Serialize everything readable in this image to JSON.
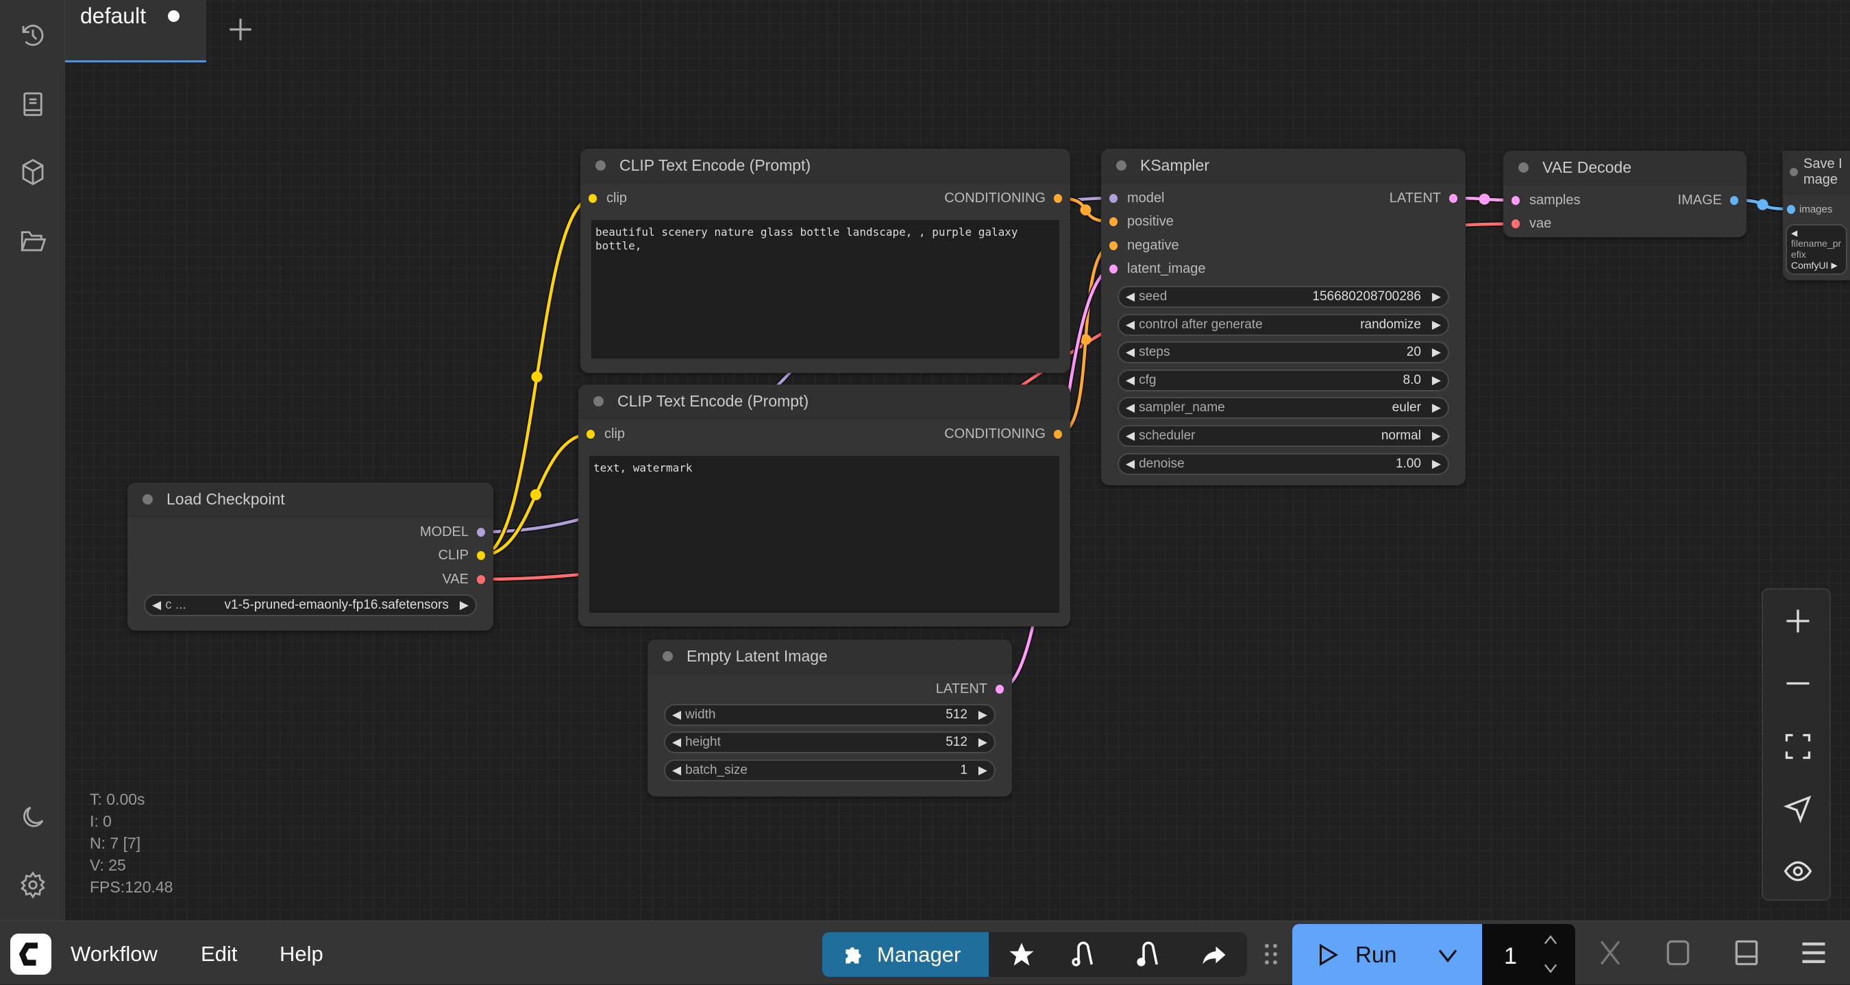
{
  "tabs": [
    {
      "label": "default",
      "unsaved": true
    }
  ],
  "sidebar": {
    "top_icons": [
      "history-icon",
      "queue-list-icon",
      "model-library-icon",
      "workflows-folder-icon"
    ],
    "bottom_icons": [
      "theme-moon-icon",
      "settings-gear-icon"
    ]
  },
  "slot_colors": {
    "MODEL": "#B39DDB",
    "CLIP": "#FFD500",
    "VAE": "#FF6E6E",
    "CONDITIONING": "#FFA931",
    "LATENT": "#FF9CF9",
    "IMAGE": "#64B5F6"
  },
  "nodes": [
    {
      "title": "Load Checkpoint",
      "inputs": [],
      "outputs": [
        {
          "name": "MODEL",
          "type": "MODEL"
        },
        {
          "name": "CLIP",
          "type": "CLIP"
        },
        {
          "name": "VAE",
          "type": "VAE"
        }
      ],
      "widgets": [
        {
          "label": "c ...",
          "value": "v1-5-pruned-emaonly-fp16.safetensors"
        }
      ]
    },
    {
      "title": "CLIP Text Encode (Prompt)",
      "inputs": [
        {
          "name": "clip",
          "type": "CLIP"
        }
      ],
      "outputs": [
        {
          "name": "CONDITIONING",
          "type": "CONDITIONING"
        }
      ],
      "text": "beautiful scenery nature glass bottle landscape, , purple galaxy bottle,"
    },
    {
      "title": "CLIP Text Encode (Prompt)",
      "inputs": [
        {
          "name": "clip",
          "type": "CLIP"
        }
      ],
      "outputs": [
        {
          "name": "CONDITIONING",
          "type": "CONDITIONING"
        }
      ],
      "text": "text, watermark"
    },
    {
      "title": "KSampler",
      "inputs": [
        {
          "name": "model",
          "type": "MODEL"
        },
        {
          "name": "positive",
          "type": "CONDITIONING"
        },
        {
          "name": "negative",
          "type": "CONDITIONING"
        },
        {
          "name": "latent_image",
          "type": "LATENT"
        }
      ],
      "outputs": [
        {
          "name": "LATENT",
          "type": "LATENT"
        }
      ],
      "widgets": [
        {
          "label": "seed",
          "value": "156680208700286"
        },
        {
          "label": "control after generate",
          "value": "randomize"
        },
        {
          "label": "steps",
          "value": "20"
        },
        {
          "label": "cfg",
          "value": "8.0"
        },
        {
          "label": "sampler_name",
          "value": "euler"
        },
        {
          "label": "scheduler",
          "value": "normal"
        },
        {
          "label": "denoise",
          "value": "1.00"
        }
      ]
    },
    {
      "title": "VAE Decode",
      "inputs": [
        {
          "name": "samples",
          "type": "LATENT"
        },
        {
          "name": "vae",
          "type": "VAE"
        }
      ],
      "outputs": [
        {
          "name": "IMAGE",
          "type": "IMAGE"
        }
      ]
    },
    {
      "title": "Save Image",
      "inputs": [
        {
          "name": "images",
          "type": "IMAGE"
        }
      ],
      "outputs": [],
      "widgets": [
        {
          "label": "filename_prefix",
          "value": "ComfyUI"
        }
      ]
    },
    {
      "title": "Empty Latent Image",
      "inputs": [],
      "outputs": [
        {
          "name": "LATENT",
          "type": "LATENT"
        }
      ],
      "widgets": [
        {
          "label": "width",
          "value": "512"
        },
        {
          "label": "height",
          "value": "512"
        },
        {
          "label": "batch_size",
          "value": "1"
        }
      ]
    }
  ],
  "links": [
    {
      "from": [
        0,
        0
      ],
      "to": [
        3,
        0
      ],
      "type": "MODEL"
    },
    {
      "from": [
        0,
        1
      ],
      "to": [
        1,
        0
      ],
      "type": "CLIP"
    },
    {
      "from": [
        0,
        1
      ],
      "to": [
        2,
        0
      ],
      "type": "CLIP"
    },
    {
      "from": [
        0,
        2
      ],
      "to": [
        4,
        1
      ],
      "type": "VAE"
    },
    {
      "from": [
        1,
        0
      ],
      "to": [
        3,
        1
      ],
      "type": "CONDITIONING"
    },
    {
      "from": [
        2,
        0
      ],
      "to": [
        3,
        2
      ],
      "type": "CONDITIONING"
    },
    {
      "from": [
        6,
        0
      ],
      "to": [
        3,
        3
      ],
      "type": "LATENT"
    },
    {
      "from": [
        3,
        0
      ],
      "to": [
        4,
        0
      ],
      "type": "LATENT"
    },
    {
      "from": [
        4,
        0
      ],
      "to": [
        5,
        0
      ],
      "type": "IMAGE"
    }
  ],
  "stats": [
    "T: 0.00s",
    "I: 0",
    "N: 7 [7]",
    "V: 25",
    "FPS:120.48"
  ],
  "menu": {
    "items": [
      "Workflow",
      "Edit",
      "Help"
    ]
  },
  "toolbar": {
    "manager": "Manager",
    "run": "Run",
    "batch_count": "1"
  }
}
